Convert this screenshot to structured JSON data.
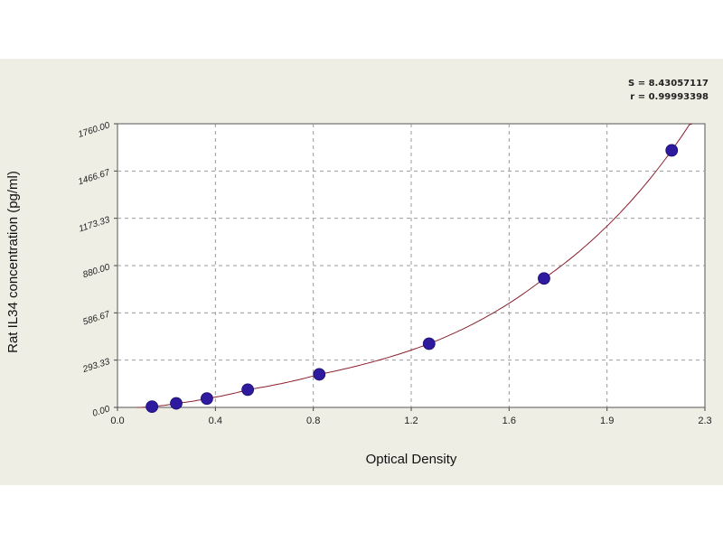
{
  "chart_data": {
    "type": "scatter",
    "xlabel": "Optical Density",
    "ylabel": "Rat IL34 concentration (pg/ml)",
    "xlim": [
      0,
      2.3
    ],
    "ylim": [
      0,
      1760
    ],
    "x_ticks": [
      "0.0",
      "0.4",
      "0.8",
      "1.2",
      "1.6",
      "1.9",
      "2.3"
    ],
    "y_ticks": [
      "0.00",
      "293.33",
      "586.67",
      "880.00",
      "1173.33",
      "1466.67",
      "1760.00"
    ],
    "stats": [
      "S = 8.43057117",
      "r = 0.99993398"
    ],
    "grid": true,
    "colors": {
      "points": "#2e1a9e",
      "curve": "#8b1f2e"
    },
    "series": [
      {
        "x": [
          0.135,
          0.23,
          0.35,
          0.51,
          0.79,
          1.22,
          1.67,
          2.17
        ],
        "y": [
          5,
          25,
          55,
          110,
          205,
          395,
          800,
          1595
        ]
      }
    ]
  }
}
